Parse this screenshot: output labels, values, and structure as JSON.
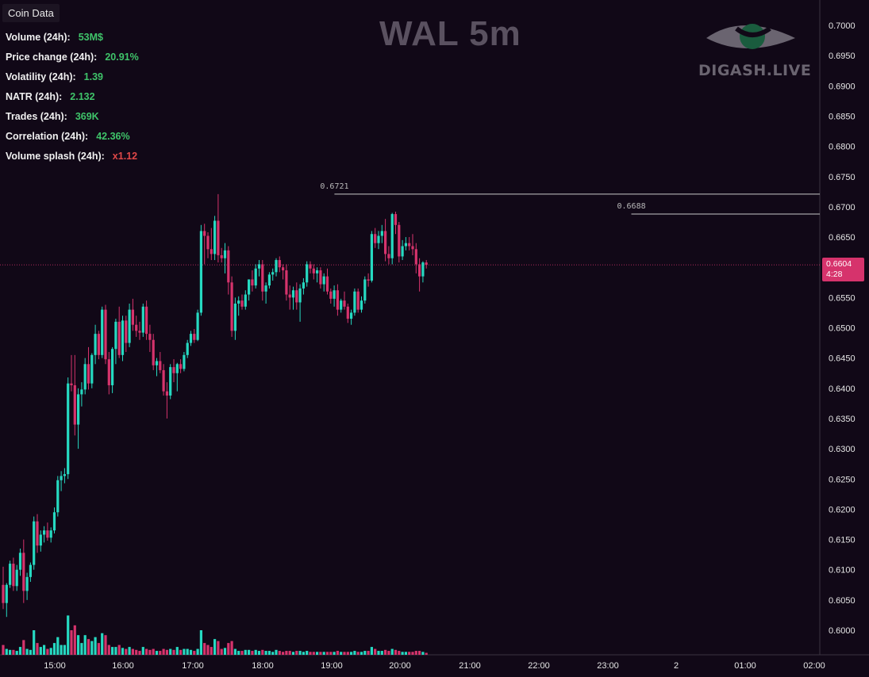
{
  "panel": {
    "header": "Coin Data",
    "stats": [
      {
        "label": "Volume (24h):",
        "value": "53M$",
        "color": "#3fc46a"
      },
      {
        "label": "Price change  (24h):",
        "value": "20.91%",
        "color": "#3fc46a"
      },
      {
        "label": "Volatility  (24h):",
        "value": "1.39",
        "color": "#3fc46a"
      },
      {
        "label": "NATR (24h):",
        "value": "2.132",
        "color": "#3fc46a"
      },
      {
        "label": "Trades (24h):",
        "value": "369K",
        "color": "#3fc46a"
      },
      {
        "label": "Correlation (24h):",
        "value": "42.36%",
        "color": "#3fc46a"
      },
      {
        "label": "Volume splash (24h):",
        "value": "x1.12",
        "color": "#e04848"
      }
    ]
  },
  "title": "WAL 5m",
  "watermark": {
    "text": "DIGASH.LIVE",
    "icon": "eye-logo-icon"
  },
  "last_price": {
    "price": "0.6604",
    "countdown": "4:28"
  },
  "colors": {
    "background": "#110817",
    "up": "#26d9c1",
    "down": "#d6336c",
    "axis_text": "#e6e6e6",
    "level_line": "#c8c8c8"
  },
  "chart_data": {
    "type": "candlestick",
    "y_ticks": [
      "0.7000",
      "0.6950",
      "0.6900",
      "0.6850",
      "0.6800",
      "0.6750",
      "0.6700",
      "0.6650",
      "0.6600",
      "0.6550",
      "0.6500",
      "0.6450",
      "0.6400",
      "0.6350",
      "0.6300",
      "0.6250",
      "0.6200",
      "0.6150",
      "0.6100",
      "0.6050",
      "0.6000"
    ],
    "x_ticks": [
      "15:00",
      "16:00",
      "17:00",
      "18:00",
      "19:00",
      "20:00",
      "21:00",
      "22:00",
      "23:00",
      "2",
      "01:00",
      "02:00"
    ],
    "ylim": [
      0.5965,
      0.7035
    ],
    "levels": [
      {
        "label": "0.6721",
        "price": 0.6721,
        "from_candle": 98
      },
      {
        "label": "0.6688",
        "price": 0.6688,
        "from_candle": 185
      }
    ],
    "candles": [
      [
        0.6075,
        0.6105,
        0.6035,
        0.6045,
        0.1
      ],
      [
        0.6045,
        0.6078,
        0.6022,
        0.6075,
        0.06
      ],
      [
        0.6075,
        0.6115,
        0.607,
        0.611,
        0.05
      ],
      [
        0.611,
        0.612,
        0.6065,
        0.6073,
        0.05
      ],
      [
        0.6073,
        0.6108,
        0.6065,
        0.61,
        0.04
      ],
      [
        0.61,
        0.6135,
        0.609,
        0.6128,
        0.08
      ],
      [
        0.6128,
        0.615,
        0.6045,
        0.6065,
        0.15
      ],
      [
        0.6065,
        0.6095,
        0.605,
        0.6088,
        0.06
      ],
      [
        0.6088,
        0.6112,
        0.608,
        0.6108,
        0.05
      ],
      [
        0.6108,
        0.6188,
        0.61,
        0.618,
        0.25
      ],
      [
        0.618,
        0.6192,
        0.6128,
        0.614,
        0.12
      ],
      [
        0.614,
        0.6165,
        0.613,
        0.6158,
        0.08
      ],
      [
        0.6158,
        0.6172,
        0.6145,
        0.6165,
        0.1
      ],
      [
        0.6165,
        0.6178,
        0.6148,
        0.6153,
        0.06
      ],
      [
        0.6153,
        0.617,
        0.6145,
        0.6165,
        0.07
      ],
      [
        0.6165,
        0.6203,
        0.616,
        0.6195,
        0.12
      ],
      [
        0.6195,
        0.6255,
        0.6188,
        0.6248,
        0.18
      ],
      [
        0.6248,
        0.6263,
        0.623,
        0.6255,
        0.1
      ],
      [
        0.6255,
        0.6268,
        0.6243,
        0.6258,
        0.1
      ],
      [
        0.6258,
        0.6418,
        0.625,
        0.6408,
        0.4
      ],
      [
        0.6408,
        0.6455,
        0.6395,
        0.6405,
        0.25
      ],
      [
        0.6405,
        0.6455,
        0.6322,
        0.634,
        0.3
      ],
      [
        0.634,
        0.64,
        0.63,
        0.639,
        0.2
      ],
      [
        0.639,
        0.641,
        0.637,
        0.6398,
        0.12
      ],
      [
        0.6398,
        0.645,
        0.639,
        0.644,
        0.2
      ],
      [
        0.644,
        0.6468,
        0.6398,
        0.6408,
        0.16
      ],
      [
        0.6408,
        0.6458,
        0.64,
        0.6455,
        0.14
      ],
      [
        0.6455,
        0.6505,
        0.644,
        0.649,
        0.18
      ],
      [
        0.649,
        0.6495,
        0.6448,
        0.6455,
        0.12
      ],
      [
        0.6455,
        0.6535,
        0.645,
        0.653,
        0.22
      ],
      [
        0.653,
        0.6538,
        0.644,
        0.6448,
        0.2
      ],
      [
        0.6448,
        0.646,
        0.639,
        0.6405,
        0.1
      ],
      [
        0.6405,
        0.6468,
        0.6392,
        0.6465,
        0.08
      ],
      [
        0.6465,
        0.6515,
        0.644,
        0.651,
        0.08
      ],
      [
        0.651,
        0.6535,
        0.645,
        0.6455,
        0.1
      ],
      [
        0.6455,
        0.652,
        0.6445,
        0.6512,
        0.07
      ],
      [
        0.6512,
        0.652,
        0.646,
        0.6475,
        0.06
      ],
      [
        0.6475,
        0.654,
        0.6468,
        0.653,
        0.08
      ],
      [
        0.653,
        0.6548,
        0.6495,
        0.6505,
        0.06
      ],
      [
        0.6505,
        0.652,
        0.6485,
        0.6495,
        0.05
      ],
      [
        0.6495,
        0.651,
        0.648,
        0.6492,
        0.04
      ],
      [
        0.6492,
        0.654,
        0.6485,
        0.6535,
        0.08
      ],
      [
        0.6535,
        0.6545,
        0.648,
        0.649,
        0.06
      ],
      [
        0.649,
        0.6505,
        0.646,
        0.648,
        0.05
      ],
      [
        0.648,
        0.649,
        0.643,
        0.6438,
        0.06
      ],
      [
        0.6438,
        0.645,
        0.642,
        0.6445,
        0.04
      ],
      [
        0.6445,
        0.646,
        0.6425,
        0.643,
        0.04
      ],
      [
        0.643,
        0.644,
        0.6388,
        0.6395,
        0.06
      ],
      [
        0.6395,
        0.641,
        0.635,
        0.6388,
        0.05
      ],
      [
        0.6388,
        0.644,
        0.6382,
        0.6435,
        0.06
      ],
      [
        0.6435,
        0.6448,
        0.641,
        0.6425,
        0.05
      ],
      [
        0.6425,
        0.6442,
        0.6395,
        0.644,
        0.08
      ],
      [
        0.644,
        0.6448,
        0.6425,
        0.6432,
        0.05
      ],
      [
        0.6432,
        0.646,
        0.6428,
        0.6455,
        0.06
      ],
      [
        0.6455,
        0.648,
        0.645,
        0.6475,
        0.06
      ],
      [
        0.6475,
        0.6495,
        0.647,
        0.649,
        0.05
      ],
      [
        0.649,
        0.6498,
        0.6475,
        0.648,
        0.04
      ],
      [
        0.648,
        0.653,
        0.6478,
        0.6525,
        0.06
      ],
      [
        0.6525,
        0.667,
        0.652,
        0.666,
        0.25
      ],
      [
        0.666,
        0.6672,
        0.6605,
        0.6652,
        0.12
      ],
      [
        0.6652,
        0.6658,
        0.6615,
        0.663,
        0.1
      ],
      [
        0.663,
        0.6665,
        0.6612,
        0.6622,
        0.08
      ],
      [
        0.6622,
        0.6685,
        0.6612,
        0.6677,
        0.16
      ],
      [
        0.6677,
        0.6721,
        0.6608,
        0.662,
        0.14
      ],
      [
        0.662,
        0.6632,
        0.6608,
        0.6615,
        0.06
      ],
      [
        0.6615,
        0.664,
        0.659,
        0.6628,
        0.07
      ],
      [
        0.6628,
        0.6635,
        0.6555,
        0.6575,
        0.12
      ],
      [
        0.6575,
        0.6585,
        0.6485,
        0.6495,
        0.14
      ],
      [
        0.6495,
        0.655,
        0.648,
        0.654,
        0.06
      ],
      [
        0.654,
        0.6552,
        0.652,
        0.6545,
        0.04
      ],
      [
        0.6545,
        0.6555,
        0.653,
        0.6535,
        0.04
      ],
      [
        0.6535,
        0.6562,
        0.653,
        0.6555,
        0.05
      ],
      [
        0.6555,
        0.658,
        0.6545,
        0.658,
        0.05
      ],
      [
        0.658,
        0.6595,
        0.656,
        0.657,
        0.04
      ],
      [
        0.657,
        0.6605,
        0.6565,
        0.6598,
        0.05
      ],
      [
        0.6598,
        0.6612,
        0.6585,
        0.6605,
        0.04
      ],
      [
        0.6605,
        0.6612,
        0.6545,
        0.656,
        0.05
      ],
      [
        0.656,
        0.6575,
        0.654,
        0.657,
        0.04
      ],
      [
        0.657,
        0.6592,
        0.6565,
        0.6588,
        0.04
      ],
      [
        0.6588,
        0.6598,
        0.6578,
        0.6592,
        0.03
      ],
      [
        0.6592,
        0.6615,
        0.6585,
        0.6612,
        0.05
      ],
      [
        0.6612,
        0.6618,
        0.6592,
        0.66,
        0.04
      ],
      [
        0.66,
        0.6605,
        0.658,
        0.6595,
        0.03
      ],
      [
        0.6595,
        0.6605,
        0.6545,
        0.6555,
        0.04
      ],
      [
        0.6555,
        0.657,
        0.653,
        0.655,
        0.04
      ],
      [
        0.655,
        0.6568,
        0.653,
        0.6562,
        0.03
      ],
      [
        0.6562,
        0.6575,
        0.653,
        0.6542,
        0.04
      ],
      [
        0.6542,
        0.6572,
        0.651,
        0.6565,
        0.04
      ],
      [
        0.6565,
        0.6582,
        0.6555,
        0.6575,
        0.03
      ],
      [
        0.6575,
        0.661,
        0.6568,
        0.6605,
        0.04
      ],
      [
        0.6605,
        0.661,
        0.659,
        0.6598,
        0.03
      ],
      [
        0.6598,
        0.6605,
        0.658,
        0.659,
        0.03
      ],
      [
        0.659,
        0.66,
        0.6575,
        0.6595,
        0.03
      ],
      [
        0.6595,
        0.66,
        0.6565,
        0.6572,
        0.03
      ],
      [
        0.6572,
        0.659,
        0.656,
        0.6585,
        0.03
      ],
      [
        0.6585,
        0.6598,
        0.6555,
        0.656,
        0.03
      ],
      [
        0.656,
        0.6565,
        0.654,
        0.6548,
        0.03
      ],
      [
        0.6548,
        0.657,
        0.6535,
        0.6562,
        0.03
      ],
      [
        0.6562,
        0.6572,
        0.652,
        0.653,
        0.04
      ],
      [
        0.653,
        0.6548,
        0.6525,
        0.6545,
        0.03
      ],
      [
        0.6545,
        0.656,
        0.653,
        0.6535,
        0.03
      ],
      [
        0.6535,
        0.654,
        0.6508,
        0.6515,
        0.03
      ],
      [
        0.6515,
        0.653,
        0.6505,
        0.6525,
        0.03
      ],
      [
        0.6525,
        0.6565,
        0.652,
        0.656,
        0.04
      ],
      [
        0.656,
        0.6565,
        0.6525,
        0.653,
        0.03
      ],
      [
        0.653,
        0.6552,
        0.6525,
        0.6545,
        0.03
      ],
      [
        0.6545,
        0.6585,
        0.654,
        0.658,
        0.04
      ],
      [
        0.658,
        0.659,
        0.6568,
        0.6578,
        0.04
      ],
      [
        0.6578,
        0.666,
        0.6575,
        0.6655,
        0.08
      ],
      [
        0.6655,
        0.6665,
        0.6632,
        0.664,
        0.06
      ],
      [
        0.664,
        0.666,
        0.663,
        0.6652,
        0.04
      ],
      [
        0.6652,
        0.667,
        0.664,
        0.666,
        0.04
      ],
      [
        0.666,
        0.668,
        0.661,
        0.6622,
        0.05
      ],
      [
        0.6622,
        0.6635,
        0.6605,
        0.6615,
        0.04
      ],
      [
        0.6615,
        0.669,
        0.6605,
        0.6688,
        0.06
      ],
      [
        0.6688,
        0.6692,
        0.6655,
        0.667,
        0.05
      ],
      [
        0.667,
        0.6675,
        0.6608,
        0.6618,
        0.04
      ],
      [
        0.6618,
        0.6645,
        0.6612,
        0.6635,
        0.03
      ],
      [
        0.6635,
        0.665,
        0.6628,
        0.664,
        0.03
      ],
      [
        0.664,
        0.665,
        0.6628,
        0.6635,
        0.03
      ],
      [
        0.6635,
        0.6655,
        0.662,
        0.663,
        0.03
      ],
      [
        0.663,
        0.664,
        0.659,
        0.6605,
        0.04
      ],
      [
        0.6605,
        0.6615,
        0.656,
        0.6585,
        0.04
      ],
      [
        0.6585,
        0.661,
        0.6575,
        0.6608,
        0.03
      ],
      [
        0.6608,
        0.6612,
        0.6598,
        0.6604,
        0.02
      ]
    ]
  }
}
